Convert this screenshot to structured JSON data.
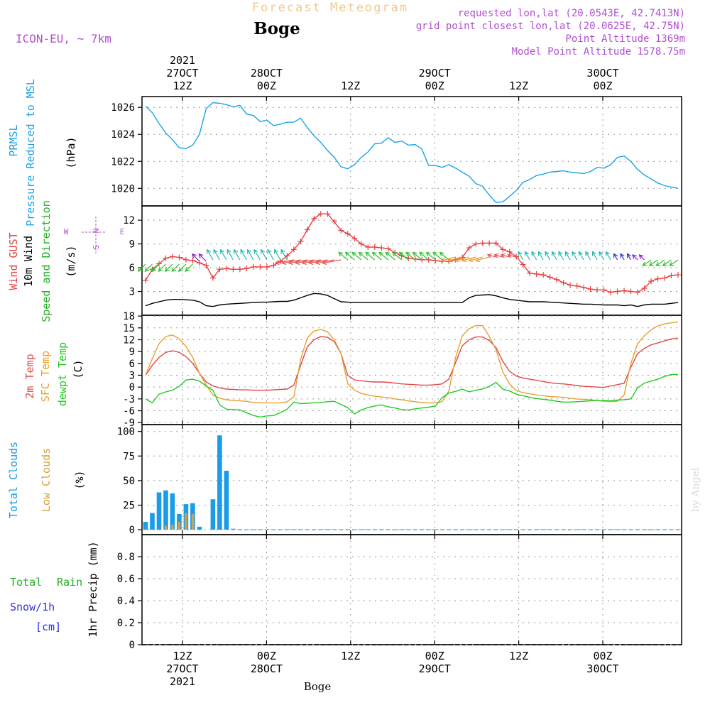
{
  "header": {
    "title": "Forecast Meteogram",
    "location": "Boge",
    "model": "ICON-EU, ~ 7km",
    "requested": "requested lon,lat (20.0543E, 42.7413N)",
    "gridpoint": "grid point closest lon,lat (20.0625E, 42.75N)",
    "point_alt": "Point Altitude 1369m",
    "model_alt": "Model Point Altitude 1578.75m",
    "footer_location": "Boge",
    "watermark": "by Angel"
  },
  "time_axis": {
    "top_labels": [
      {
        "l1": "2021",
        "l2": "27OCT",
        "l3": "12Z"
      },
      {
        "l1": "",
        "l2": "28OCT",
        "l3": "00Z"
      },
      {
        "l1": "",
        "l2": "",
        "l3": "12Z"
      },
      {
        "l1": "",
        "l2": "29OCT",
        "l3": "00Z"
      },
      {
        "l1": "",
        "l2": "",
        "l3": "12Z"
      },
      {
        "l1": "",
        "l2": "30OCT",
        "l3": "00Z"
      }
    ],
    "bottom_labels": [
      {
        "l1": "12Z",
        "l2": "27OCT",
        "l3": "2021"
      },
      {
        "l1": "00Z",
        "l2": "28OCT",
        "l3": ""
      },
      {
        "l1": "12Z",
        "l2": "",
        "l3": ""
      },
      {
        "l1": "00Z",
        "l2": "29OCT",
        "l3": ""
      },
      {
        "l1": "12Z",
        "l2": "",
        "l3": ""
      },
      {
        "l1": "00Z",
        "l2": "30OCT",
        "l3": ""
      }
    ]
  },
  "panel_labels": {
    "pressure": {
      "l1": "PRMSL",
      "l2": "Pressure Reduced to MSL",
      "unit": "(hPa)"
    },
    "wind": {
      "l1": "Wind GUST",
      "l2": "10m Wind",
      "l3": "Speed and Direction",
      "unit": "(m/s)",
      "compass_n": "N",
      "compass_s": "S",
      "compass_w": "W",
      "compass_e": "E"
    },
    "temp": {
      "l1": "2m Temp",
      "l2": "SFC Temp",
      "l3": "dewpt Temp",
      "unit": "(C)"
    },
    "clouds": {
      "l1": "Total Clouds",
      "l2": "Low Clouds",
      "unit": "(%)"
    },
    "precip": {
      "l1": "Total",
      "l2": "Rain",
      "l3": "Snow/1h",
      "l4": "[cm]",
      "unit": "1hr Precip (mm)"
    }
  },
  "colors": {
    "pressure": "#1aa3e8",
    "gust": "#e84040",
    "wind10m": "#000000",
    "temp2m": "#e04848",
    "sfc": "#e8a030",
    "dewpt": "#20cc20",
    "total_clouds": "#1a9ce8",
    "low_clouds": "#d8a040",
    "rain": "#20b020",
    "snow": "#3030e0",
    "title": "#f0c890",
    "meta": "#b050d0"
  },
  "chart_data": [
    {
      "type": "line",
      "title": "",
      "ylabel": "PRMSL Pressure Reduced to MSL (hPa)",
      "ylim": [
        1018.7,
        1026.8
      ],
      "yticks": [
        1020,
        1022,
        1024,
        1026
      ],
      "grid": true,
      "x": [
        0,
        1,
        2,
        3,
        4,
        5,
        6,
        7,
        8,
        9,
        10,
        11,
        12,
        13,
        14,
        15,
        16,
        17,
        18,
        19,
        20,
        21,
        22,
        23,
        24,
        25,
        26,
        27,
        28,
        29,
        30,
        31,
        32,
        33,
        34,
        35,
        36,
        37,
        38,
        39,
        40,
        41,
        42,
        43,
        44,
        45,
        46,
        47,
        48,
        49,
        50,
        51,
        52,
        53,
        54,
        55,
        56,
        57,
        58,
        59,
        60,
        61,
        62,
        63,
        64,
        65,
        66,
        67,
        68,
        69,
        70,
        71,
        72,
        73,
        74,
        75,
        76,
        77,
        78,
        79
      ],
      "series": [
        {
          "name": "PRMSL",
          "values": [
            1026.1,
            1025.6,
            1024.8,
            1024.1,
            1023.6,
            1023.0,
            1022.95,
            1023.2,
            1024.0,
            1025.9,
            1026.35,
            1026.3,
            1026.2,
            1026.05,
            1026.15,
            1025.5,
            1025.4,
            1024.95,
            1025.05,
            1024.65,
            1024.75,
            1024.9,
            1024.9,
            1025.2,
            1024.5,
            1023.9,
            1023.4,
            1022.8,
            1022.3,
            1021.6,
            1021.45,
            1021.75,
            1022.3,
            1022.7,
            1023.3,
            1023.35,
            1023.75,
            1023.4,
            1023.5,
            1023.2,
            1023.25,
            1022.9,
            1021.7,
            1021.7,
            1021.55,
            1021.75,
            1021.5,
            1021.2,
            1020.9,
            1020.35,
            1020.15,
            1019.5,
            1018.95,
            1019.0,
            1019.4,
            1019.85,
            1020.45,
            1020.65,
            1020.95,
            1021.05,
            1021.2,
            1021.25,
            1021.3,
            1021.2,
            1021.15,
            1021.1,
            1021.25,
            1021.55,
            1021.5,
            1021.75,
            1022.3,
            1022.4,
            1022.0,
            1021.4,
            1021.0,
            1020.7,
            1020.4,
            1020.2,
            1020.1,
            1020.0
          ]
        }
      ]
    },
    {
      "type": "line",
      "title": "",
      "ylabel": "Wind GUST / 10m Wind Speed and Direction (m/s)",
      "ylim": [
        0,
        13.8
      ],
      "yticks": [
        3,
        6,
        9,
        12
      ],
      "grid": true,
      "x": [
        0,
        1,
        2,
        3,
        4,
        5,
        6,
        7,
        8,
        9,
        10,
        11,
        12,
        13,
        14,
        15,
        16,
        17,
        18,
        19,
        20,
        21,
        22,
        23,
        24,
        25,
        26,
        27,
        28,
        29,
        30,
        31,
        32,
        33,
        34,
        35,
        36,
        37,
        38,
        39,
        40,
        41,
        42,
        43,
        44,
        45,
        46,
        47,
        48,
        49,
        50,
        51,
        52,
        53,
        54,
        55,
        56,
        57,
        58,
        59,
        60,
        61,
        62,
        63,
        64,
        65,
        66,
        67,
        68,
        69,
        70,
        71,
        72,
        73,
        74,
        75,
        76,
        77,
        78,
        79
      ],
      "series": [
        {
          "name": "Wind GUST",
          "values": [
            4.4,
            5.8,
            6.5,
            7.2,
            7.4,
            7.3,
            7.0,
            6.9,
            6.6,
            6.3,
            4.7,
            5.8,
            5.9,
            5.8,
            5.8,
            5.9,
            6.1,
            6.1,
            6.1,
            6.3,
            6.8,
            7.5,
            8.3,
            9.3,
            10.8,
            12.2,
            12.8,
            12.8,
            11.8,
            10.7,
            10.3,
            9.7,
            9.0,
            8.6,
            8.6,
            8.5,
            8.4,
            7.9,
            7.5,
            7.2,
            7.1,
            7.0,
            7.0,
            6.9,
            6.8,
            6.8,
            7.0,
            7.3,
            8.5,
            9.0,
            9.1,
            9.1,
            9.1,
            8.3,
            8.0,
            7.4,
            6.4,
            5.3,
            5.2,
            5.1,
            4.8,
            4.5,
            4.1,
            3.8,
            3.7,
            3.5,
            3.3,
            3.2,
            3.2,
            2.9,
            3.0,
            3.1,
            3.0,
            2.9,
            3.4,
            4.3,
            4.6,
            4.7,
            5.0,
            5.1
          ]
        },
        {
          "name": "10m Wind",
          "values": [
            1.2,
            1.5,
            1.7,
            1.9,
            2.0,
            2.0,
            1.95,
            1.9,
            1.7,
            1.2,
            1.1,
            1.3,
            1.4,
            1.45,
            1.5,
            1.55,
            1.6,
            1.65,
            1.65,
            1.7,
            1.75,
            1.75,
            1.9,
            2.2,
            2.5,
            2.75,
            2.7,
            2.5,
            2.1,
            1.7,
            1.65,
            1.6,
            1.6,
            1.6,
            1.6,
            1.6,
            1.6,
            1.6,
            1.6,
            1.6,
            1.6,
            1.6,
            1.6,
            1.6,
            1.6,
            1.6,
            1.6,
            1.6,
            2.2,
            2.5,
            2.55,
            2.6,
            2.45,
            2.2,
            2.0,
            1.9,
            1.8,
            1.7,
            1.7,
            1.7,
            1.65,
            1.6,
            1.55,
            1.5,
            1.45,
            1.4,
            1.4,
            1.35,
            1.3,
            1.3,
            1.3,
            1.2,
            1.3,
            1.1,
            1.3,
            1.4,
            1.4,
            1.4,
            1.5,
            1.6
          ]
        }
      ]
    },
    {
      "type": "line",
      "title": "",
      "ylabel": "2m Temp / SFC Temp / dewpt Temp (C)",
      "ylim": [
        -9.5,
        18.2
      ],
      "yticks": [
        -9,
        -6,
        -3,
        0,
        3,
        6,
        9,
        12,
        15,
        18
      ],
      "grid": true,
      "x": [
        0,
        1,
        2,
        3,
        4,
        5,
        6,
        7,
        8,
        9,
        10,
        11,
        12,
        13,
        14,
        15,
        16,
        17,
        18,
        19,
        20,
        21,
        22,
        23,
        24,
        25,
        26,
        27,
        28,
        29,
        30,
        31,
        32,
        33,
        34,
        35,
        36,
        37,
        38,
        39,
        40,
        41,
        42,
        43,
        44,
        45,
        46,
        47,
        48,
        49,
        50,
        51,
        52,
        53,
        54,
        55,
        56,
        57,
        58,
        59,
        60,
        61,
        62,
        63,
        64,
        65,
        66,
        67,
        68,
        69,
        70,
        71,
        72,
        73,
        74,
        75,
        76,
        77,
        78,
        79
      ],
      "series": [
        {
          "name": "2m Temp",
          "values": [
            3.0,
            5.5,
            7.5,
            8.8,
            9.2,
            8.8,
            7.7,
            6.0,
            3.5,
            1.3,
            0.3,
            -0.2,
            -0.5,
            -0.6,
            -0.7,
            -0.7,
            -0.8,
            -0.8,
            -0.8,
            -0.7,
            -0.6,
            -0.5,
            0.5,
            5.5,
            10.2,
            12.0,
            12.8,
            12.6,
            11.5,
            8.5,
            3.0,
            1.8,
            1.6,
            1.4,
            1.3,
            1.3,
            1.2,
            1.0,
            0.8,
            0.7,
            0.6,
            0.5,
            0.5,
            0.6,
            0.8,
            2.0,
            6.2,
            10.5,
            12.0,
            12.7,
            12.7,
            11.8,
            10.0,
            6.5,
            4.0,
            2.8,
            2.3,
            2.0,
            1.7,
            1.4,
            1.1,
            0.9,
            0.8,
            0.6,
            0.4,
            0.2,
            0.1,
            0.0,
            -0.1,
            0.3,
            0.6,
            1.0,
            5.0,
            8.5,
            9.8,
            10.7,
            11.2,
            11.7,
            12.2,
            12.4
          ]
        },
        {
          "name": "SFC Temp",
          "values": [
            3.0,
            7.2,
            11.0,
            12.8,
            13.2,
            12.2,
            10.3,
            7.5,
            3.5,
            0.5,
            -2.0,
            -2.8,
            -3.2,
            -3.4,
            -3.5,
            -3.6,
            -3.9,
            -4.0,
            -4.0,
            -4.0,
            -4.0,
            -3.7,
            -2.5,
            7.0,
            12.5,
            14.2,
            14.6,
            14.0,
            12.0,
            8.5,
            0.8,
            -0.8,
            -1.6,
            -2.0,
            -2.3,
            -2.5,
            -2.7,
            -3.0,
            -3.2,
            -3.5,
            -3.7,
            -3.9,
            -4.0,
            -4.0,
            -3.7,
            -1.0,
            7.5,
            13.0,
            14.8,
            15.6,
            15.6,
            12.8,
            9.5,
            3.8,
            0.8,
            -0.9,
            -1.4,
            -1.7,
            -2.0,
            -2.2,
            -2.4,
            -2.5,
            -2.6,
            -2.8,
            -3.0,
            -3.1,
            -3.2,
            -3.4,
            -3.6,
            -3.7,
            -3.6,
            -2.0,
            6.0,
            11.0,
            13.0,
            14.5,
            15.5,
            16.0,
            16.3,
            16.5
          ]
        },
        {
          "name": "dewpt Temp",
          "values": [
            -3.0,
            -4.0,
            -1.8,
            -1.2,
            -0.8,
            0.2,
            1.8,
            2.0,
            1.5,
            0.3,
            -0.8,
            -4.5,
            -5.6,
            -5.7,
            -5.8,
            -6.5,
            -7.2,
            -7.6,
            -7.3,
            -7.2,
            -6.5,
            -5.6,
            -3.8,
            -4.2,
            -4.1,
            -4.0,
            -3.9,
            -3.7,
            -3.6,
            -4.4,
            -5.2,
            -6.8,
            -5.8,
            -5.2,
            -4.8,
            -4.5,
            -5.0,
            -5.3,
            -5.7,
            -5.8,
            -5.5,
            -5.3,
            -5.1,
            -4.8,
            -2.7,
            -1.5,
            -1.1,
            -0.5,
            -1.2,
            -0.8,
            -0.5,
            0.2,
            1.2,
            -0.5,
            -1.0,
            -1.8,
            -2.2,
            -2.6,
            -2.9,
            -3.1,
            -3.3,
            -3.6,
            -3.8,
            -3.8,
            -3.7,
            -3.6,
            -3.5,
            -3.4,
            -3.4,
            -3.5,
            -3.3,
            -3.2,
            -3.0,
            -0.2,
            1.0,
            1.5,
            2.0,
            2.7,
            3.2,
            3.2
          ]
        }
      ]
    },
    {
      "type": "bar",
      "title": "",
      "ylabel": "Total Clouds / Low Clouds (%)",
      "ylim": [
        -5,
        107
      ],
      "yticks": [
        0,
        25,
        50,
        75,
        100
      ],
      "grid": true,
      "x": [
        0,
        1,
        2,
        3,
        4,
        5,
        6,
        7,
        8,
        9,
        10,
        11,
        12,
        13,
        14,
        15,
        16,
        17,
        18,
        19,
        20,
        21,
        22,
        23,
        24,
        25,
        26,
        27,
        28,
        29,
        30,
        31,
        32,
        33,
        34,
        35,
        36,
        37,
        38,
        39,
        40,
        41,
        42,
        43,
        44,
        45,
        46,
        47,
        48,
        49,
        50,
        51,
        52,
        53,
        54,
        55,
        56,
        57,
        58,
        59,
        60,
        61,
        62,
        63,
        64,
        65,
        66,
        67,
        68,
        69,
        70,
        71,
        72,
        73,
        74,
        75,
        76,
        77,
        78,
        79
      ],
      "series": [
        {
          "name": "Total Clouds",
          "values": [
            8,
            17,
            38,
            40,
            37,
            16,
            26,
            27,
            3,
            0,
            31,
            96,
            60,
            1,
            0.5,
            0.5,
            0.5,
            0.5,
            0.5,
            0.5,
            0.5,
            0.5,
            0.5,
            0.5,
            0.5,
            0.5,
            0.5,
            0.5,
            0.5,
            0.5,
            0.5,
            0.5,
            0.5,
            0.5,
            0.5,
            0.5,
            0.5,
            0.5,
            0.5,
            0.5,
            0.5,
            0.5,
            0.5,
            0.5,
            0.5,
            0.5,
            0.5,
            0.5,
            0.5,
            0.5,
            0.5,
            0.5,
            0.5,
            0.5,
            0.5,
            0.5,
            0.5,
            0.5,
            0.5,
            0.5,
            0.5,
            0.5,
            0.5,
            0.5,
            0.5,
            0.5,
            0.5,
            0.5,
            0.5,
            0.5,
            0.5,
            0.5,
            0.5,
            0.5,
            0.5,
            0.5,
            0.5,
            0.5,
            0.5,
            0.5
          ]
        },
        {
          "name": "Low Clouds",
          "values": [
            0,
            0,
            0,
            4,
            5,
            8,
            17,
            16,
            0,
            0,
            0,
            0,
            0,
            0,
            0,
            0,
            0,
            0,
            0,
            0,
            0,
            0,
            0,
            0,
            0,
            0,
            0,
            0,
            0,
            0,
            0,
            0,
            0,
            0,
            0,
            0,
            0,
            0,
            0,
            0,
            0,
            0,
            0,
            0,
            0,
            0,
            0,
            0,
            0,
            0,
            0,
            0,
            0,
            0,
            0,
            0,
            0,
            0,
            0,
            0,
            0,
            0,
            0,
            0,
            0,
            0,
            0,
            0,
            0,
            0,
            0,
            0,
            0,
            0,
            0,
            0,
            0,
            0,
            0,
            0
          ]
        }
      ]
    },
    {
      "type": "bar",
      "title": "",
      "ylabel": "1hr Precip (mm)",
      "ylim": [
        0,
        1.0
      ],
      "yticks": [
        0,
        0.2,
        0.4,
        0.6,
        0.8
      ],
      "ytick_labels": [
        "0",
        "0.2",
        "0.4",
        "0.6",
        "0.8"
      ],
      "grid": true,
      "series": [
        {
          "name": "Total Rain",
          "values": []
        },
        {
          "name": "Snow/1h",
          "values": []
        }
      ]
    }
  ]
}
